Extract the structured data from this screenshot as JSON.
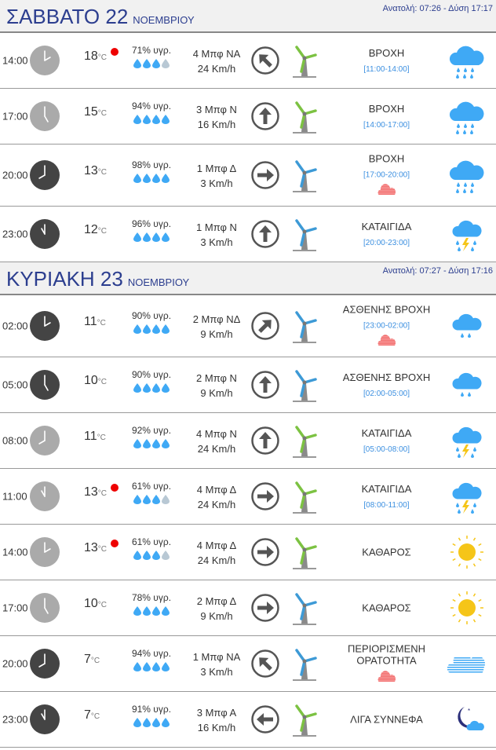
{
  "colors": {
    "accent": "#2c3e8f",
    "rain_blue": "#3fa9f5",
    "range_blue": "#3b8fe0",
    "hot_dot": "#e00000",
    "wind_green": "#7cc242",
    "wind_blue": "#3d9ad6",
    "sun": "#f5c518"
  },
  "days": [
    {
      "title": "ΣΑΒΒΑΤΟ 22",
      "month": "ΝΟΕΜΒΡΙΟΥ",
      "sun": "Ανατολή: 07:26  - Δύση 17:17",
      "rows": [
        {
          "time": "14:00",
          "clock": "day",
          "temp": "18",
          "unit": "°C",
          "hot": true,
          "hum": "71% υγρ.",
          "drops": 3,
          "wind": "4 Μπφ ΝΑ",
          "speed": "24 Km/h",
          "arrow": "up-left",
          "turbine": "green",
          "cond": "ΒΡΟΧΗ",
          "range": "[11:00-14:00]",
          "fog": false,
          "icon": "rain"
        },
        {
          "time": "17:00",
          "clock": "day",
          "temp": "15",
          "unit": "°C",
          "hot": false,
          "hum": "94% υγρ.",
          "drops": 4,
          "wind": "3 Μπφ Ν",
          "speed": "16 Km/h",
          "arrow": "up",
          "turbine": "green",
          "cond": "ΒΡΟΧΗ",
          "range": "[14:00-17:00]",
          "fog": false,
          "icon": "rain"
        },
        {
          "time": "20:00",
          "clock": "night",
          "temp": "13",
          "unit": "°C",
          "hot": false,
          "hum": "98% υγρ.",
          "drops": 4,
          "wind": "1 Μπφ Δ",
          "speed": "3 Km/h",
          "arrow": "right",
          "turbine": "blue",
          "cond": "ΒΡΟΧΗ",
          "range": "[17:00-20:00]",
          "fog": true,
          "icon": "rain"
        },
        {
          "time": "23:00",
          "clock": "night",
          "temp": "12",
          "unit": "°C",
          "hot": false,
          "hum": "96% υγρ.",
          "drops": 4,
          "wind": "1 Μπφ Ν",
          "speed": "3 Km/h",
          "arrow": "up",
          "turbine": "blue",
          "cond": "ΚΑΤΑΙΓΙΔΑ",
          "range": "[20:00-23:00]",
          "fog": false,
          "icon": "storm"
        }
      ]
    },
    {
      "title": "ΚΥΡΙΑΚΗ 23",
      "month": "ΝΟΕΜΒΡΙΟΥ",
      "sun": "Ανατολή: 07:27  - Δύση 17:16",
      "rows": [
        {
          "time": "02:00",
          "clock": "night",
          "temp": "11",
          "unit": "°C",
          "hot": false,
          "hum": "90% υγρ.",
          "drops": 4,
          "wind": "2 Μπφ ΝΔ",
          "speed": "9 Km/h",
          "arrow": "up-right",
          "turbine": "blue",
          "cond": "ΑΣΘΕΝΗΣ ΒΡΟΧΗ",
          "range": "[23:00-02:00]",
          "fog": true,
          "icon": "light-rain"
        },
        {
          "time": "05:00",
          "clock": "night",
          "temp": "10",
          "unit": "°C",
          "hot": false,
          "hum": "90% υγρ.",
          "drops": 4,
          "wind": "2 Μπφ Ν",
          "speed": "9 Km/h",
          "arrow": "up",
          "turbine": "blue",
          "cond": "ΑΣΘΕΝΗΣ ΒΡΟΧΗ",
          "range": "[02:00-05:00]",
          "fog": false,
          "icon": "light-rain"
        },
        {
          "time": "08:00",
          "clock": "day",
          "temp": "11",
          "unit": "°C",
          "hot": false,
          "hum": "92% υγρ.",
          "drops": 4,
          "wind": "4 Μπφ Ν",
          "speed": "24 Km/h",
          "arrow": "up",
          "turbine": "green",
          "cond": "ΚΑΤΑΙΓΙΔΑ",
          "range": "[05:00-08:00]",
          "fog": false,
          "icon": "storm"
        },
        {
          "time": "11:00",
          "clock": "day",
          "temp": "13",
          "unit": "°C",
          "hot": true,
          "hum": "61% υγρ.",
          "drops": 3,
          "wind": "4 Μπφ Δ",
          "speed": "24 Km/h",
          "arrow": "right",
          "turbine": "green",
          "cond": "ΚΑΤΑΙΓΙΔΑ",
          "range": "[08:00-11:00]",
          "fog": false,
          "icon": "storm"
        },
        {
          "time": "14:00",
          "clock": "day",
          "temp": "13",
          "unit": "°C",
          "hot": true,
          "hum": "61% υγρ.",
          "drops": 3,
          "wind": "4 Μπφ Δ",
          "speed": "24 Km/h",
          "arrow": "right",
          "turbine": "green",
          "cond": "ΚΑΘΑΡΟΣ",
          "range": "",
          "fog": false,
          "icon": "sun"
        },
        {
          "time": "17:00",
          "clock": "day",
          "temp": "10",
          "unit": "°C",
          "hot": false,
          "hum": "78% υγρ.",
          "drops": 4,
          "wind": "2 Μπφ Δ",
          "speed": "9 Km/h",
          "arrow": "right",
          "turbine": "blue",
          "cond": "ΚΑΘΑΡΟΣ",
          "range": "",
          "fog": false,
          "icon": "sun"
        },
        {
          "time": "20:00",
          "clock": "night",
          "temp": "7",
          "unit": "°C",
          "hot": false,
          "hum": "94% υγρ.",
          "drops": 4,
          "wind": "1 Μπφ ΝΑ",
          "speed": "3 Km/h",
          "arrow": "up-left",
          "turbine": "blue",
          "cond": "ΠΕΡΙΟΡΙΣΜΕΝΗ ΟΡΑΤΟΤΗΤΑ",
          "range": "",
          "fog": true,
          "icon": "fog"
        },
        {
          "time": "23:00",
          "clock": "night",
          "temp": "7",
          "unit": "°C",
          "hot": false,
          "hum": "91% υγρ.",
          "drops": 4,
          "wind": "3 Μπφ Α",
          "speed": "16 Km/h",
          "arrow": "left",
          "turbine": "green",
          "cond": "ΛΙΓΑ ΣΥΝΝΕΦΑ",
          "range": "",
          "fog": false,
          "icon": "night-few-clouds"
        }
      ]
    }
  ]
}
